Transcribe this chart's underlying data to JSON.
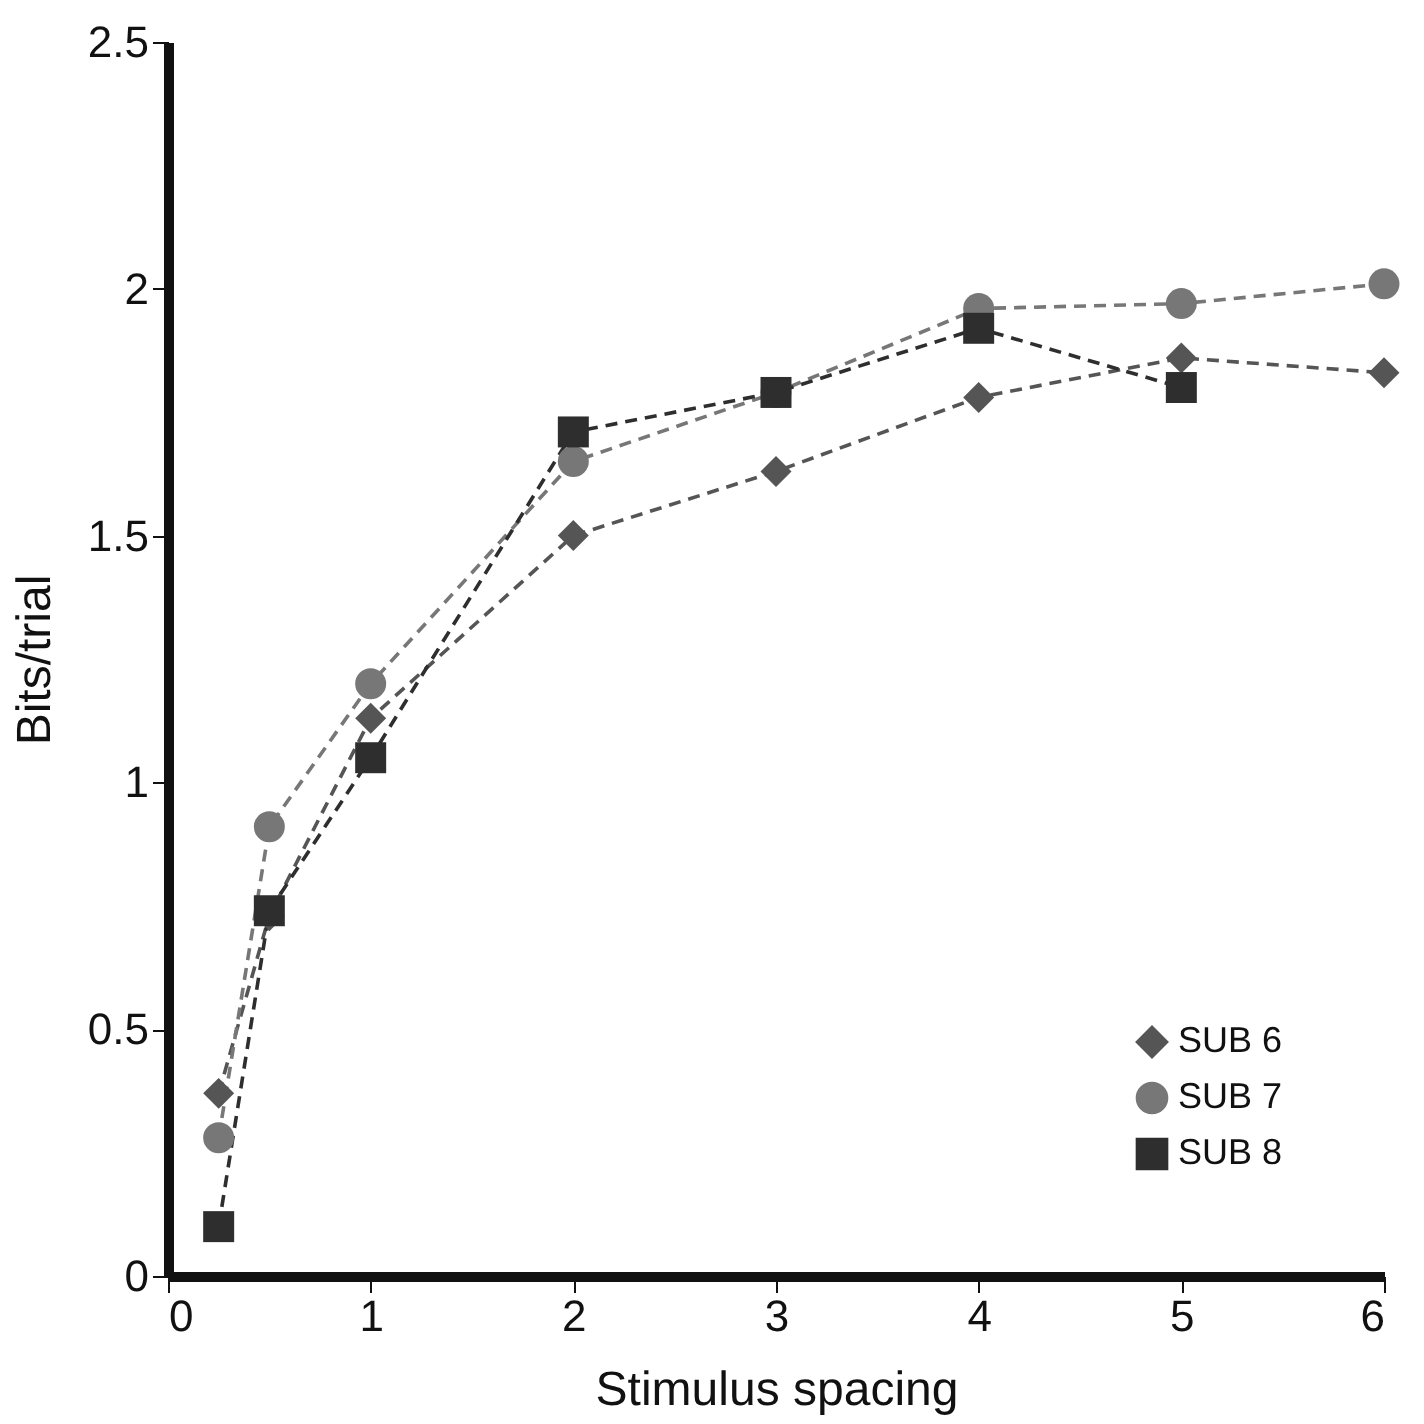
{
  "chart_data": {
    "type": "line",
    "xlabel": "Stimulus spacing",
    "ylabel": "Bits/trial",
    "x": [
      0.25,
      0.5,
      1,
      2,
      3,
      4,
      5,
      6
    ],
    "series": [
      {
        "name": "SUB 6",
        "color": "#555555",
        "marker": "diamond",
        "values": [
          0.37,
          0.73,
          1.13,
          1.5,
          1.63,
          1.78,
          1.86,
          1.83
        ]
      },
      {
        "name": "SUB 7",
        "color": "#777777",
        "marker": "circle",
        "values": [
          0.28,
          0.91,
          1.2,
          1.65,
          1.79,
          1.96,
          1.97,
          2.01
        ]
      },
      {
        "name": "SUB 8",
        "color": "#2e2e2e",
        "marker": "square",
        "values": [
          0.1,
          0.74,
          1.05,
          1.71,
          1.79,
          1.92,
          1.8,
          null
        ]
      }
    ],
    "xlim": [
      0,
      6
    ],
    "xticks": [
      0,
      1,
      2,
      3,
      4,
      5,
      6
    ],
    "ylim": [
      0,
      2.5
    ],
    "yticks": [
      0,
      0.5,
      1,
      1.5,
      2,
      2.5
    ],
    "grid": false,
    "legend": "bottom right",
    "line_style": "dashed"
  }
}
